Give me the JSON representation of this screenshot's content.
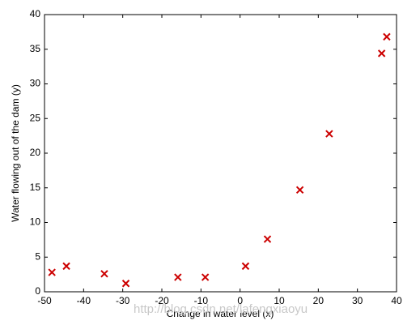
{
  "chart_data": {
    "type": "scatter",
    "xlabel": "Change in water level (x)",
    "ylabel": "Water flowing out of the dam (y)",
    "x": [
      -48.1,
      -44.4,
      -34.7,
      -29.2,
      -15.9,
      -8.9,
      1.4,
      7.0,
      15.3,
      22.8,
      36.2,
      37.5
    ],
    "values": [
      2.8,
      3.7,
      2.6,
      1.2,
      2.1,
      2.1,
      3.7,
      7.6,
      14.7,
      22.8,
      34.4,
      36.8
    ],
    "color": "#cc0000",
    "marker": "x",
    "xlim": [
      -50,
      40
    ],
    "ylim": [
      0,
      40
    ],
    "xticks": [
      -50,
      -40,
      -30,
      -20,
      -10,
      0,
      10,
      20,
      30,
      40
    ],
    "yticks": [
      0,
      5,
      10,
      15,
      20,
      25,
      30,
      35,
      40
    ],
    "watermark": "http://blog.csdn.net/lafengxiaoyu"
  }
}
